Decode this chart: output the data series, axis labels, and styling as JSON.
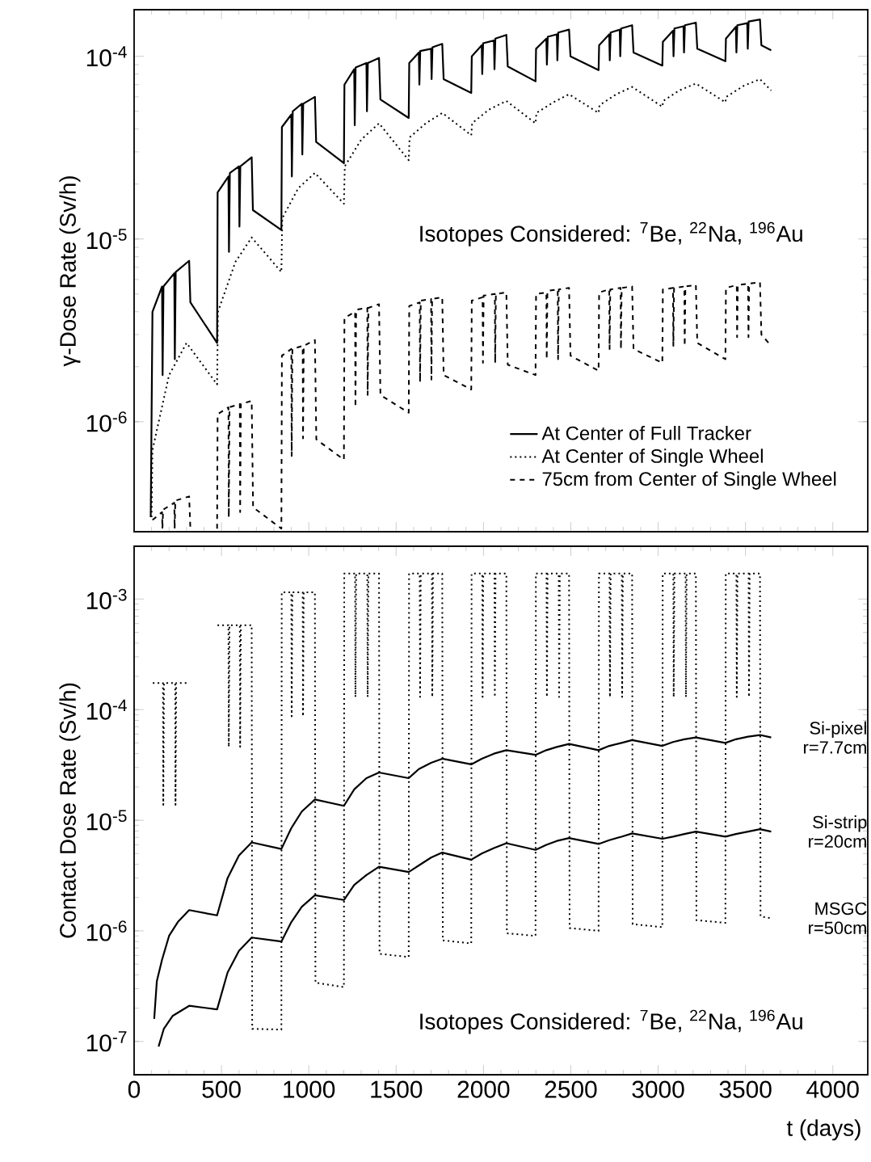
{
  "chart_data": [
    {
      "type": "line",
      "ylabel": "γ-Dose Rate (Sv/h)",
      "log": "y",
      "legend": "bottom right",
      "tick_labels": "y",
      "xlim": [
        0,
        4200
      ],
      "xticks": [
        0,
        500,
        1000,
        1500,
        2000,
        2500,
        3000,
        3500,
        4000
      ],
      "ylim": [
        2.5e-07,
        0.00018
      ],
      "yticks": [
        {
          "value": 1e-06,
          "label": "10$^{-6}$"
        },
        {
          "value": 1e-05,
          "label": "10$^{-5}$"
        },
        {
          "value": 0.0001,
          "label": "10$^{-4}$"
        }
      ],
      "annotations": [
        "Isotopes Considered: $^{7}$Be, $^{22}$Na, $^{196}$Au"
      ],
      "series": [
        {
          "name": "At Center of Full Tracker",
          "color": "#000000",
          "line_style": "solid",
          "x": [
            95,
            105,
            160,
            163,
            168,
            230,
            233,
            238,
            315,
            322,
            475,
            478,
            540,
            543,
            548,
            600,
            603,
            608,
            673,
            680,
            843,
            846,
            900,
            903,
            908,
            960,
            963,
            968,
            1035,
            1042,
            1201,
            1204,
            1260,
            1263,
            1268,
            1330,
            1333,
            1338,
            1402,
            1410,
            1572,
            1575,
            1630,
            1633,
            1638,
            1700,
            1703,
            1708,
            1764,
            1772,
            1930,
            1933,
            1990,
            1993,
            1998,
            2060,
            2063,
            2068,
            2131,
            2139,
            2298,
            2301,
            2360,
            2363,
            2368,
            2420,
            2423,
            2428,
            2490,
            2498,
            2659,
            2662,
            2720,
            2723,
            2728,
            2780,
            2783,
            2788,
            2851,
            2859,
            3024,
            3027,
            3085,
            3088,
            3093,
            3145,
            3148,
            3153,
            3216,
            3224,
            3385,
            3388,
            3445,
            3448,
            3453,
            3510,
            3513,
            3518,
            3583,
            3591,
            3647
          ],
          "values": [
            3e-07,
            4e-06,
            5.5e-06,
            1.8e-06,
            5.5e-06,
            6.5e-06,
            2.2e-06,
            6.6e-06,
            7.6e-06,
            4.5e-06,
            2.7e-06,
            1.8e-05,
            2.2e-05,
            8.5e-06,
            2.3e-05,
            2.5e-05,
            1.17e-05,
            2.5e-05,
            2.8e-05,
            1.44e-05,
            1.12e-05,
            4.1e-05,
            4.8e-05,
            2.2e-05,
            5e-05,
            5.5e-05,
            2.9e-05,
            5.5e-05,
            6e-05,
            3.4e-05,
            2.6e-05,
            7e-05,
            8.5e-05,
            4.2e-05,
            8.7e-05,
            9.2e-05,
            5e-05,
            9.2e-05,
            9.8e-05,
            5.8e-05,
            4.6e-05,
            9.2e-05,
            0.000105,
            7e-05,
            0.000107,
            0.00011,
            7.5e-05,
            0.000112,
            0.000117,
            7.5e-05,
            6.3e-05,
            0.0001,
            0.000115,
            8e-05,
            0.000118,
            0.000122,
            8.5e-05,
            0.000125,
            0.000131,
            8.8e-05,
            7.3e-05,
            0.00011,
            0.000125,
            9e-05,
            0.000128,
            0.000132,
            9.5e-05,
            0.000135,
            0.00014,
            0.0001,
            8.4e-05,
            0.000115,
            0.000132,
            9.5e-05,
            0.000135,
            0.00014,
            0.0001,
            0.000142,
            0.000148,
            0.000105,
            8.9e-05,
            0.00012,
            0.000138,
            0.0001,
            0.000142,
            0.000146,
            0.000105,
            0.000148,
            0.000153,
            0.00011,
            9.4e-05,
            0.000125,
            0.000145,
            0.000105,
            0.000148,
            0.000152,
            0.00011,
            0.000155,
            0.000159,
            0.000115,
            0.000108
          ]
        },
        {
          "name": "At Center of Single Wheel",
          "color": "#000000",
          "line_style": "dotted",
          "x": [
            100,
            105,
            200,
            300,
            475,
            480,
            580,
            673,
            843,
            848,
            940,
            1035,
            1201,
            1206,
            1300,
            1402,
            1572,
            1577,
            1670,
            1764,
            1930,
            1935,
            2030,
            2131,
            2298,
            2303,
            2400,
            2490,
            2659,
            2664,
            2760,
            2851,
            3024,
            3029,
            3120,
            3216,
            3385,
            3390,
            3490,
            3583,
            3647
          ],
          "values": [
            3e-07,
            7e-07,
            1.8e-06,
            2.7e-06,
            1.6e-06,
            4e-06,
            7.5e-06,
            1.02e-05,
            6.6e-06,
            1.3e-05,
            1.9e-05,
            2.3e-05,
            1.56e-05,
            2.5e-05,
            3.5e-05,
            4.3e-05,
            2.7e-05,
            3.6e-05,
            4.3e-05,
            4.9e-05,
            3.7e-05,
            4.3e-05,
            5.1e-05,
            5.7e-05,
            4.3e-05,
            4.9e-05,
            5.6e-05,
            6.2e-05,
            4.9e-05,
            5.4e-05,
            6.2e-05,
            6.8e-05,
            5.3e-05,
            5.7e-05,
            6.5e-05,
            7.1e-05,
            5.6e-05,
            6e-05,
            6.9e-05,
            7.5e-05,
            6.5e-05
          ]
        },
        {
          "name": "75cm from Center of Single Wheel",
          "color": "#000000",
          "line_style": "dashed",
          "x": [
            105,
            160,
            162,
            166,
            230,
            232,
            236,
            315,
            322,
            400,
            475,
            478,
            540,
            542,
            546,
            605,
            607,
            611,
            673,
            681,
            843,
            846,
            900,
            902,
            906,
            965,
            967,
            971,
            1035,
            1043,
            1201,
            1204,
            1265,
            1267,
            1271,
            1335,
            1337,
            1341,
            1402,
            1410,
            1572,
            1575,
            1635,
            1637,
            1641,
            1700,
            1702,
            1706,
            1764,
            1772,
            1930,
            1933,
            1995,
            1997,
            2001,
            2065,
            2067,
            2071,
            2131,
            2139,
            2298,
            2301,
            2360,
            2362,
            2366,
            2425,
            2427,
            2431,
            2490,
            2498,
            2659,
            2662,
            2720,
            2722,
            2726,
            2785,
            2787,
            2791,
            2851,
            2859,
            3024,
            3027,
            3085,
            3087,
            3091,
            3150,
            3152,
            3156,
            3216,
            3224,
            3385,
            3388,
            3450,
            3452,
            3456,
            3515,
            3517,
            3521,
            3583,
            3591,
            3647
          ],
          "values": [
            2.9e-07,
            3.2e-07,
            2.6e-07,
            3.3e-07,
            3.6e-07,
            2.6e-07,
            3.7e-07,
            3.9e-07,
            2.6e-07,
            null,
            2.6e-07,
            1.1e-06,
            1.2e-06,
            3e-07,
            1.2e-06,
            1.25e-06,
            3.2e-07,
            1.25e-06,
            1.3e-06,
            3.4e-07,
            2.6e-07,
            2.3e-06,
            2.5e-06,
            6.5e-07,
            2.5e-06,
            2.6e-06,
            8.1e-07,
            2.6e-06,
            2.8e-06,
            8e-07,
            6.2e-07,
            3.7e-06,
            4e-06,
            1.2e-06,
            4.1e-06,
            4.2e-06,
            1.4e-06,
            4.2e-06,
            4.4e-06,
            1.4e-06,
            1.12e-06,
            4.3e-06,
            4.5e-06,
            1.65e-06,
            4.6e-06,
            4.7e-06,
            1.7e-06,
            4.7e-06,
            4.8e-06,
            1.8e-06,
            1.5e-06,
            4.6e-06,
            4.8e-06,
            2.1e-06,
            4.9e-06,
            5e-06,
            2.1e-06,
            5e-06,
            5.1e-06,
            2.05e-06,
            1.8e-06,
            5e-06,
            5.1e-06,
            2.2e-06,
            5.2e-06,
            5.3e-06,
            2.2e-06,
            5.3e-06,
            5.4e-06,
            2.3e-06,
            1.9e-06,
            5.1e-06,
            5.3e-06,
            2.5e-06,
            5.3e-06,
            5.4e-06,
            2.5e-06,
            5.4e-06,
            5.5e-06,
            2.5e-06,
            2.1e-06,
            5.3e-06,
            5.4e-06,
            2.6e-06,
            5.4e-06,
            5.5e-06,
            2.6e-06,
            5.5e-06,
            5.6e-06,
            2.7e-06,
            2.2e-06,
            5.4e-06,
            5.6e-06,
            2.9e-06,
            5.6e-06,
            5.7e-06,
            2.9e-06,
            5.7e-06,
            5.8e-06,
            3e-06,
            2.6e-06
          ]
        }
      ]
    },
    {
      "type": "line",
      "ylabel": "Contact Dose Rate (Sv/h)",
      "xlabel": "t (days)",
      "log": "y",
      "xlim": [
        0,
        4200
      ],
      "xticks": [
        0,
        500,
        1000,
        1500,
        2000,
        2500,
        3000,
        3500,
        4000
      ],
      "ylim": [
        5e-08,
        0.003
      ],
      "yticks": [
        {
          "value": 1e-07,
          "label": "10$^{-7}$"
        },
        {
          "value": 1e-06,
          "label": "10$^{-6}$"
        },
        {
          "value": 1e-05,
          "label": "10$^{-5}$"
        },
        {
          "value": 0.0001,
          "label": "10$^{-4}$"
        },
        {
          "value": 0.001,
          "label": "10$^{-3}$"
        }
      ],
      "annotations": [
        "Isotopes Considered: $^{7}$Be, $^{22}$Na, $^{196}$Au"
      ],
      "series": [
        {
          "name": "Si-pixel r=7.7cm",
          "color": "#000000",
          "line_style": "solid",
          "x": [
            115,
            130,
            160,
            200,
            250,
            315,
            475,
            535,
            600,
            673,
            843,
            900,
            960,
            1035,
            1201,
            1260,
            1330,
            1402,
            1572,
            1630,
            1700,
            1764,
            1930,
            1990,
            2060,
            2131,
            2298,
            2360,
            2420,
            2490,
            2659,
            2720,
            2790,
            2851,
            3024,
            3085,
            3150,
            3216,
            3385,
            3445,
            3515,
            3583,
            3647
          ],
          "values": [
            1.6e-07,
            3.5e-07,
            5.5e-07,
            9e-07,
            1.2e-06,
            1.54e-06,
            1.38e-06,
            3e-06,
            4.8e-06,
            6.3e-06,
            5.5e-06,
            8.5e-06,
            1.2e-05,
            1.54e-05,
            1.35e-05,
            1.9e-05,
            2.4e-05,
            2.7e-05,
            2.4e-05,
            2.9e-05,
            3.3e-05,
            3.6e-05,
            3.2e-05,
            3.6e-05,
            4e-05,
            4.3e-05,
            3.9e-05,
            4.3e-05,
            4.6e-05,
            4.9e-05,
            4.3e-05,
            4.7e-05,
            5e-05,
            5.3e-05,
            4.7e-05,
            5.1e-05,
            5.4e-05,
            5.6e-05,
            5e-05,
            5.4e-05,
            5.7e-05,
            5.9e-05,
            5.6e-05
          ]
        },
        {
          "name": "Si-strip r=20cm",
          "color": "#000000",
          "line_style": "solid",
          "x": [
            140,
            170,
            220,
            315,
            475,
            535,
            600,
            673,
            843,
            900,
            960,
            1035,
            1201,
            1260,
            1330,
            1402,
            1572,
            1630,
            1700,
            1764,
            1930,
            1990,
            2060,
            2131,
            2298,
            2360,
            2420,
            2490,
            2659,
            2720,
            2790,
            2851,
            3024,
            3085,
            3150,
            3216,
            3385,
            3445,
            3515,
            3583,
            3647
          ],
          "values": [
            9e-08,
            1.3e-07,
            1.7e-07,
            2.1e-07,
            1.95e-07,
            4.2e-07,
            6.6e-07,
            8.7e-07,
            8e-07,
            1.2e-06,
            1.65e-06,
            2.1e-06,
            1.9e-06,
            2.6e-06,
            3.2e-06,
            3.8e-06,
            3.4e-06,
            3.9e-06,
            4.6e-06,
            5.1e-06,
            4.4e-06,
            5e-06,
            5.6e-06,
            6.2e-06,
            5.4e-06,
            6e-06,
            6.5e-06,
            6.9e-06,
            6.1e-06,
            6.6e-06,
            7.1e-06,
            7.6e-06,
            6.8e-06,
            7.1e-06,
            7.5e-06,
            7.9e-06,
            7.1e-06,
            7.5e-06,
            7.9e-06,
            8.3e-06,
            7.9e-06
          ]
        },
        {
          "name": "MSGC r=50cm",
          "color": "#000000",
          "line_style": "dotted",
          "x": [
            107,
            165,
            167,
            171,
            235,
            237,
            241,
            315,
            400,
            477,
            540,
            542,
            546,
            605,
            607,
            611,
            673,
            676,
            843,
            845,
            900,
            902,
            906,
            965,
            967,
            971,
            1035,
            1038,
            1201,
            1203,
            1265,
            1267,
            1271,
            1335,
            1337,
            1341,
            1402,
            1405,
            1572,
            1574,
            1635,
            1637,
            1641,
            1705,
            1707,
            1711,
            1764,
            1767,
            1930,
            1932,
            1993,
            1995,
            1999,
            2063,
            2065,
            2069,
            2131,
            2134,
            2298,
            2300,
            2361,
            2363,
            2367,
            2431,
            2433,
            2437,
            2490,
            2493,
            2659,
            2661,
            2722,
            2724,
            2728,
            2792,
            2794,
            2798,
            2851,
            2854,
            3024,
            3026,
            3087,
            3089,
            3093,
            3157,
            3159,
            3163,
            3216,
            3219,
            3385,
            3387,
            3448,
            3450,
            3454,
            3518,
            3520,
            3524,
            3583,
            3586,
            3647
          ],
          "values": [
            0.000174,
            0.000174,
            1.38e-05,
            0.000174,
            0.000174,
            1.38e-05,
            0.000174,
            0.000174,
            null,
            0.00058,
            0.00058,
            4.6e-05,
            0.00058,
            0.00058,
            4.6e-05,
            0.00058,
            0.00058,
            1.3e-07,
            1.28e-07,
            0.00115,
            0.00115,
            8.7e-05,
            0.00115,
            0.00115,
            8.7e-05,
            0.00115,
            0.00115,
            3.4e-07,
            3.1e-07,
            0.0017,
            0.0017,
            0.00013,
            0.0017,
            0.0017,
            0.00013,
            0.0017,
            0.0017,
            6.2e-07,
            5.8e-07,
            0.0017,
            0.0017,
            0.00013,
            0.0017,
            0.0017,
            0.00013,
            0.0017,
            0.0017,
            8.2e-07,
            7.7e-07,
            0.0017,
            0.0017,
            0.00013,
            0.0017,
            0.0017,
            0.00013,
            0.0017,
            0.0017,
            9.5e-07,
            9e-07,
            0.0017,
            0.0017,
            0.00013,
            0.0017,
            0.0017,
            0.00013,
            0.0017,
            0.0017,
            1.06e-06,
            1e-06,
            0.0017,
            0.0017,
            0.00013,
            0.0017,
            0.0017,
            0.00013,
            0.0017,
            0.0017,
            1.15e-06,
            1.08e-06,
            0.0017,
            0.0017,
            0.00013,
            0.0017,
            0.0017,
            0.00013,
            0.0017,
            0.0017,
            1.25e-06,
            1.18e-06,
            0.0017,
            0.0017,
            0.00013,
            0.0017,
            0.0017,
            0.00013,
            0.0017,
            0.0017,
            1.35e-06,
            1.3e-06
          ]
        }
      ]
    }
  ]
}
